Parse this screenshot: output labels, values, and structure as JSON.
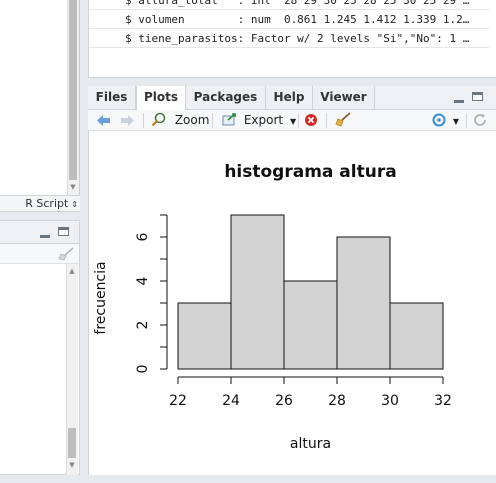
{
  "editor": {
    "file_type": "R Script"
  },
  "console": {
    "lines": [
      "$ altura_total   : int  28 29 30 25 28 25 30 25 29 …",
      "$ volumen        : num  0.861 1.245 1.412 1.339 1.2…",
      "$ tiene_parasitos: Factor w/ 2 levels \"Si\",\"No\": 1 …"
    ]
  },
  "tabs": [
    {
      "label": "Files"
    },
    {
      "label": "Plots"
    },
    {
      "label": "Packages"
    },
    {
      "label": "Help"
    },
    {
      "label": "Viewer"
    }
  ],
  "toolbar": {
    "zoom_label": "Zoom",
    "export_label": "Export"
  },
  "icons": {
    "back": "arrow-left-icon",
    "forward": "arrow-right-icon",
    "zoom": "zoom-icon",
    "export": "export-icon",
    "remove": "remove-plot-icon",
    "clear": "broom-icon",
    "publish": "publish-icon",
    "refresh": "refresh-icon"
  },
  "colors": {
    "accent": "#4a90d9",
    "remove_red": "#d12a2a",
    "bar_fill": "#d3d3d3"
  },
  "chart_data": {
    "type": "bar",
    "title": "histograma altura",
    "xlabel": "altura",
    "ylabel": "frecuencia",
    "bins": [
      {
        "from": 22,
        "to": 24,
        "count": 3
      },
      {
        "from": 24,
        "to": 26,
        "count": 7
      },
      {
        "from": 26,
        "to": 28,
        "count": 4
      },
      {
        "from": 28,
        "to": 30,
        "count": 6
      },
      {
        "from": 30,
        "to": 32,
        "count": 3
      }
    ],
    "xticks": [
      22,
      24,
      26,
      28,
      30,
      32
    ],
    "yticks": [
      0,
      2,
      4,
      6
    ],
    "xlim": [
      22,
      32
    ],
    "ylim": [
      0,
      7
    ],
    "grid": false
  }
}
